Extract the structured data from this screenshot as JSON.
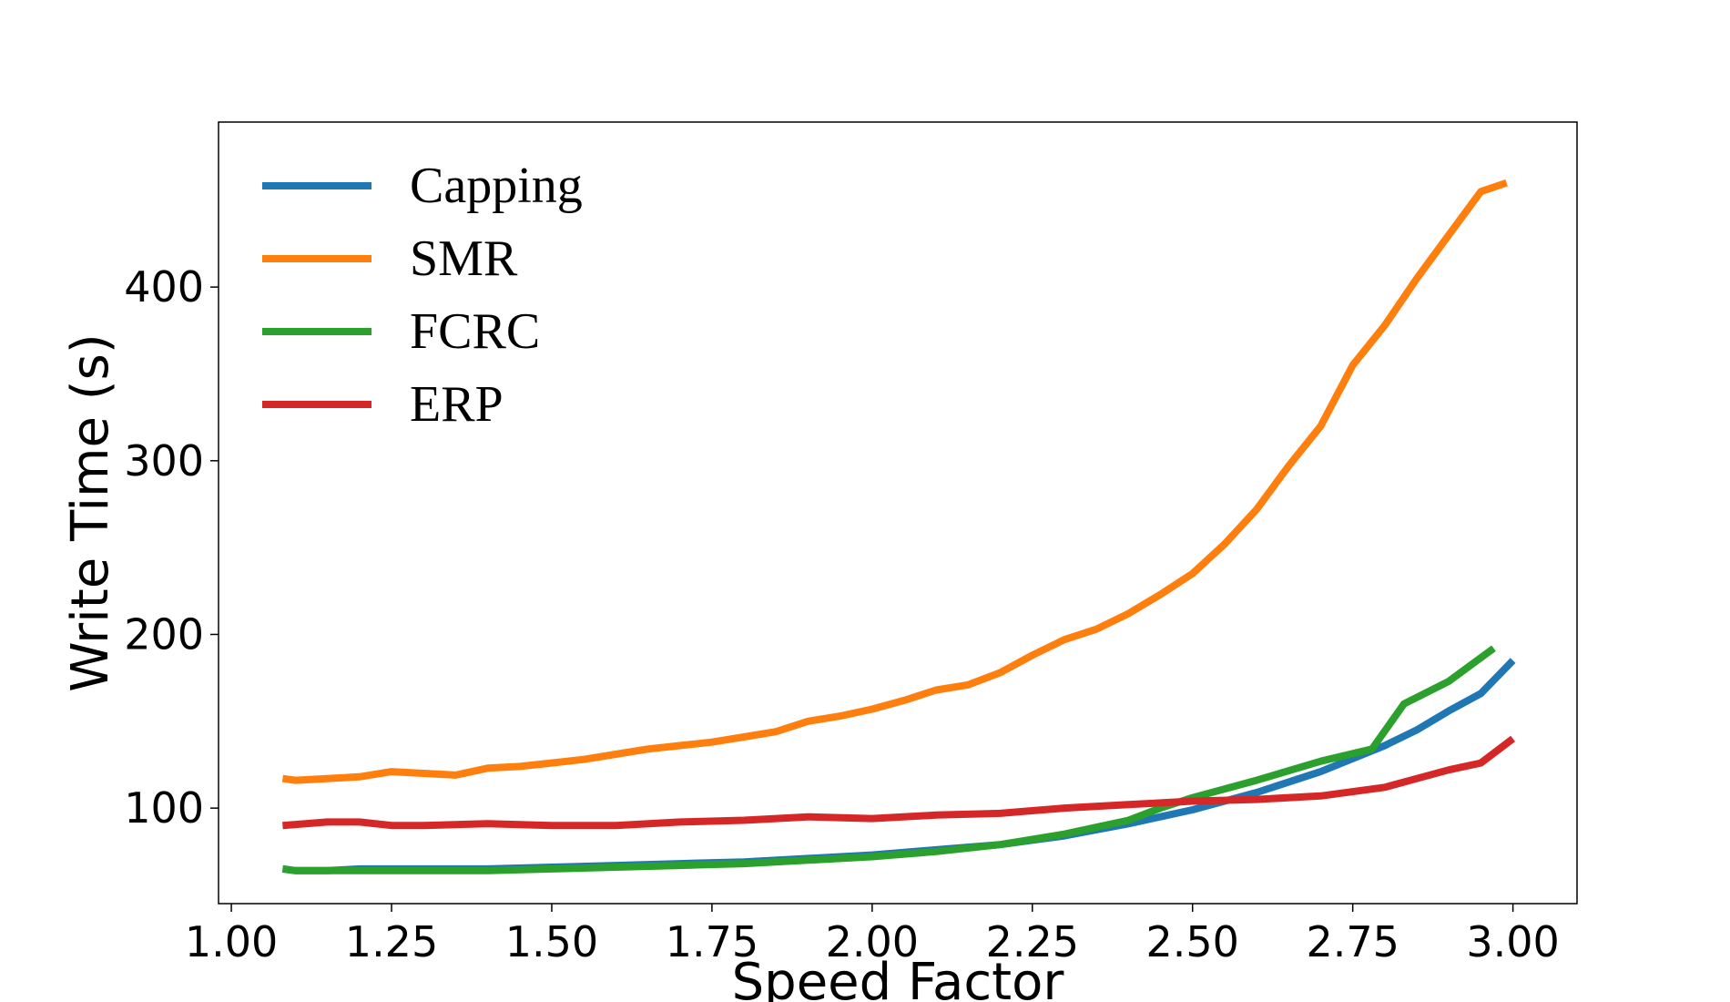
{
  "chart_data": {
    "type": "line",
    "title": "",
    "xlabel": "Speed Factor",
    "ylabel": "Write Time (s)",
    "xlim": [
      0.98,
      3.1
    ],
    "ylim": [
      45,
      495
    ],
    "x_ticks": [
      "1.00",
      "1.25",
      "1.50",
      "1.75",
      "2.00",
      "2.25",
      "2.50",
      "2.75",
      "3.00"
    ],
    "y_ticks": [
      "100",
      "200",
      "300",
      "400"
    ],
    "grid": false,
    "legend": "top-left",
    "series": [
      {
        "name": "Capping",
        "color": "#1f77b4",
        "x": [
          1.08,
          1.1,
          1.15,
          1.2,
          1.3,
          1.4,
          1.5,
          1.6,
          1.7,
          1.8,
          1.9,
          2.0,
          2.1,
          2.2,
          2.3,
          2.4,
          2.5,
          2.6,
          2.7,
          2.8,
          2.85,
          2.9,
          2.95,
          3.0
        ],
        "y": [
          65,
          64,
          64,
          65,
          65,
          65,
          66,
          67,
          68,
          69,
          71,
          73,
          76,
          79,
          84,
          91,
          99,
          109,
          121,
          136,
          145,
          156,
          166,
          185
        ]
      },
      {
        "name": "SMR",
        "color": "#ff7f0e",
        "x": [
          1.08,
          1.1,
          1.15,
          1.2,
          1.25,
          1.3,
          1.35,
          1.4,
          1.45,
          1.5,
          1.55,
          1.6,
          1.65,
          1.7,
          1.75,
          1.8,
          1.85,
          1.9,
          1.95,
          2.0,
          2.05,
          2.1,
          2.15,
          2.2,
          2.25,
          2.3,
          2.35,
          2.4,
          2.45,
          2.5,
          2.55,
          2.6,
          2.65,
          2.7,
          2.75,
          2.8,
          2.85,
          2.9,
          2.95,
          2.99
        ],
        "y": [
          117,
          116,
          117,
          118,
          121,
          120,
          119,
          123,
          124,
          126,
          128,
          131,
          134,
          136,
          138,
          141,
          144,
          150,
          153,
          157,
          162,
          168,
          171,
          178,
          188,
          197,
          203,
          212,
          223,
          235,
          252,
          272,
          297,
          320,
          355,
          378,
          405,
          430,
          455,
          460
        ]
      },
      {
        "name": "FCRC",
        "color": "#2ca02c",
        "x": [
          1.08,
          1.1,
          1.15,
          1.2,
          1.3,
          1.4,
          1.5,
          1.6,
          1.7,
          1.8,
          1.9,
          2.0,
          2.1,
          2.2,
          2.3,
          2.4,
          2.45,
          2.5,
          2.6,
          2.7,
          2.78,
          2.83,
          2.9,
          2.97
        ],
        "y": [
          65,
          64,
          64,
          64,
          64,
          64,
          65,
          66,
          67,
          68,
          70,
          72,
          75,
          79,
          85,
          93,
          100,
          106,
          116,
          127,
          134,
          160,
          173,
          192
        ]
      },
      {
        "name": "ERP",
        "color": "#d62728",
        "x": [
          1.08,
          1.15,
          1.2,
          1.25,
          1.3,
          1.4,
          1.5,
          1.6,
          1.7,
          1.8,
          1.9,
          2.0,
          2.1,
          2.2,
          2.3,
          2.4,
          2.5,
          2.6,
          2.7,
          2.8,
          2.85,
          2.9,
          2.95,
          3.0
        ],
        "y": [
          90,
          92,
          92,
          90,
          90,
          91,
          90,
          90,
          92,
          93,
          95,
          94,
          96,
          97,
          100,
          102,
          104,
          105,
          107,
          112,
          117,
          122,
          126,
          140
        ]
      }
    ]
  }
}
